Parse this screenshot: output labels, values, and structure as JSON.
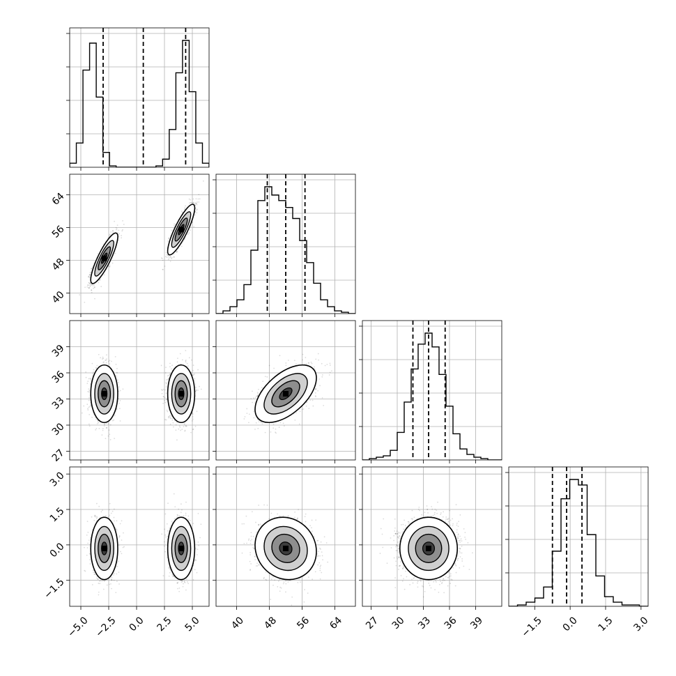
{
  "chart_data": {
    "type": "corner",
    "parameters": [
      {
        "ticks": [
          -5.0,
          -2.5,
          0.0,
          2.5,
          5.0
        ],
        "tick_labels": [
          "−5.0",
          "−2.5",
          "0.0",
          "2.5",
          "5.0"
        ],
        "range": [
          -6.0,
          6.5
        ],
        "quantiles": [
          -3.0,
          0.6,
          4.4
        ],
        "histogram": [
          0.03,
          0.18,
          0.72,
          0.92,
          0.52,
          0.11,
          0.01,
          0.0,
          0.0,
          0.0,
          0.0,
          0.0,
          0.0,
          0.01,
          0.06,
          0.28,
          0.7,
          0.94,
          0.56,
          0.18,
          0.03
        ],
        "modes": [
          {
            "mean": -2.9,
            "sd": 0.55,
            "weight": 0.5
          },
          {
            "mean": 4.0,
            "sd": 0.55,
            "weight": 0.5
          }
        ]
      },
      {
        "ticks": [
          40,
          48,
          56,
          64
        ],
        "tick_labels": [
          "40",
          "48",
          "56",
          "64"
        ],
        "range": [
          35,
          69
        ],
        "quantiles": [
          47.5,
          52.0,
          56.7
        ],
        "histogram": [
          0.0,
          0.02,
          0.05,
          0.1,
          0.21,
          0.46,
          0.82,
          0.92,
          0.86,
          0.82,
          0.77,
          0.69,
          0.53,
          0.37,
          0.22,
          0.1,
          0.05,
          0.02,
          0.01,
          0.0
        ],
        "modes": [
          {
            "mean": 48.5,
            "sd": 2.8,
            "weight": 0.5
          },
          {
            "mean": 55.5,
            "sd": 2.8,
            "weight": 0.5
          }
        ]
      },
      {
        "ticks": [
          27,
          30,
          33,
          36,
          39
        ],
        "tick_labels": [
          "27",
          "30",
          "33",
          "36",
          "39"
        ],
        "range": [
          26,
          42
        ],
        "quantiles": [
          31.8,
          33.6,
          35.5
        ],
        "histogram": [
          0.0,
          0.01,
          0.02,
          0.03,
          0.07,
          0.2,
          0.42,
          0.66,
          0.84,
          0.92,
          0.82,
          0.62,
          0.39,
          0.19,
          0.08,
          0.04,
          0.02,
          0.01,
          0.0,
          0.0
        ],
        "modes": [
          {
            "mean": 33.6,
            "sd": 1.5,
            "weight": 1.0
          }
        ]
      },
      {
        "ticks": [
          -1.5,
          0.0,
          1.5,
          3.0
        ],
        "tick_labels": [
          "−1.5",
          "0.0",
          "1.5",
          "3.0"
        ],
        "range": [
          -2.6,
          3.3
        ],
        "quantiles": [
          -0.75,
          -0.15,
          0.5
        ],
        "histogram": [
          0.0,
          0.01,
          0.03,
          0.06,
          0.14,
          0.4,
          0.78,
          0.92,
          0.88,
          0.52,
          0.22,
          0.07,
          0.03,
          0.01,
          0.01,
          0.0
        ],
        "modes": [
          {
            "mean": -0.15,
            "sd": 0.6,
            "weight": 1.0
          }
        ]
      }
    ],
    "correlations": [
      [
        1,
        0.85,
        0.0,
        0.0
      ],
      [
        0.85,
        1,
        0.55,
        -0.1
      ],
      [
        0.0,
        0.55,
        1,
        0.0
      ],
      [
        0.0,
        -0.1,
        0.0,
        1
      ]
    ],
    "colors": {
      "hist": "#000000",
      "points": "#000000",
      "contour_fill": "#6f6f6f",
      "grid": "#b0b0b0"
    },
    "grid": true,
    "quantile_line_style": "dashed"
  }
}
